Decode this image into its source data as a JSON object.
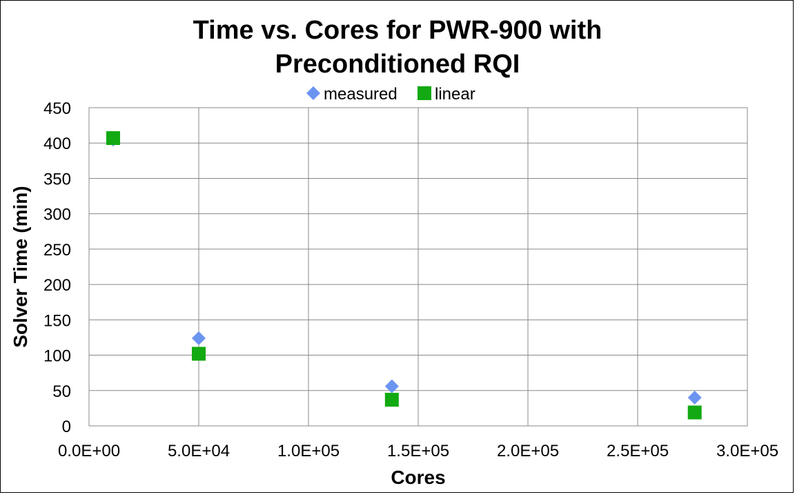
{
  "chart_data": {
    "type": "scatter",
    "title_lines": [
      "Time vs. Cores for PWR-900 with",
      "Preconditioned RQI"
    ],
    "xlabel": "Cores",
    "ylabel": "Solver Time (min)",
    "xlim": [
      0,
      300000
    ],
    "ylim": [
      0,
      450
    ],
    "x_ticks": [
      0,
      50000,
      100000,
      150000,
      200000,
      250000,
      300000
    ],
    "x_tick_labels": [
      "0.0E+00",
      "5.0E+04",
      "1.0E+05",
      "1.5E+05",
      "2.0E+05",
      "2.5E+05",
      "3.0E+05"
    ],
    "y_ticks": [
      0,
      50,
      100,
      150,
      200,
      250,
      300,
      350,
      400,
      450
    ],
    "y_tick_labels": [
      "0",
      "50",
      "100",
      "150",
      "200",
      "250",
      "300",
      "350",
      "400",
      "450"
    ],
    "grid": true,
    "legend_position": "top",
    "series": [
      {
        "name": "measured",
        "marker": "diamond",
        "color": "#6b94f0",
        "points": [
          {
            "x": 11000,
            "y": 405
          },
          {
            "x": 50000,
            "y": 124
          },
          {
            "x": 138000,
            "y": 56
          },
          {
            "x": 276000,
            "y": 40
          }
        ]
      },
      {
        "name": "linear",
        "marker": "square",
        "color": "#12a912",
        "points": [
          {
            "x": 11000,
            "y": 407
          },
          {
            "x": 50000,
            "y": 102
          },
          {
            "x": 138000,
            "y": 37
          },
          {
            "x": 276000,
            "y": 19
          }
        ]
      }
    ]
  }
}
